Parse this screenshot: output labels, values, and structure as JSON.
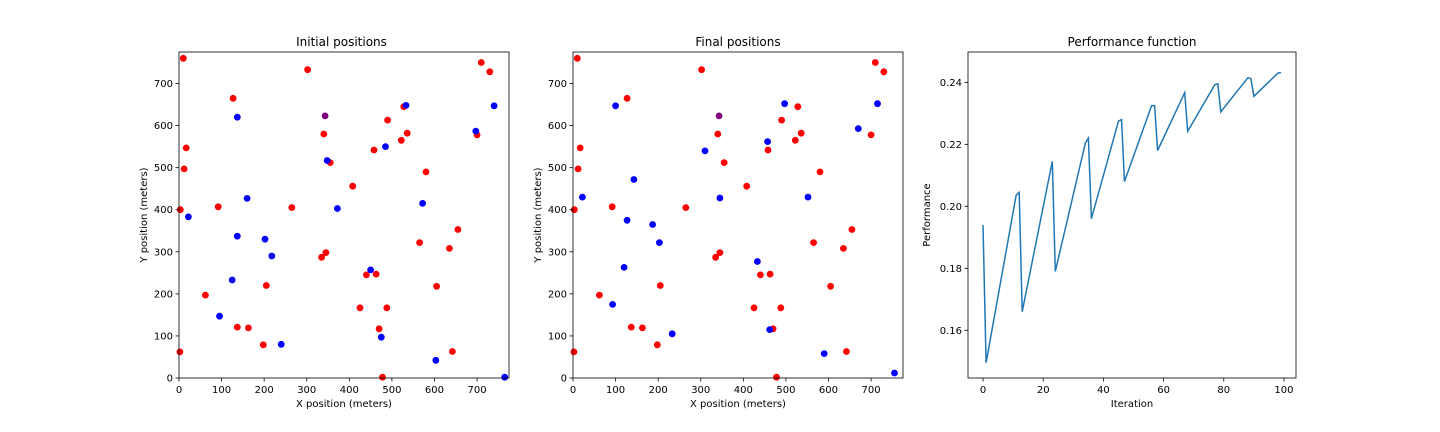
{
  "chart_data": [
    {
      "type": "scatter",
      "title": "Initial positions",
      "xlabel": "X position (meters)",
      "ylabel": "Y position (meters)",
      "xlim": [
        0,
        775
      ],
      "ylim": [
        0,
        775
      ],
      "xticks": [
        0,
        100,
        200,
        300,
        400,
        500,
        600,
        700
      ],
      "yticks": [
        0,
        100,
        200,
        300,
        400,
        500,
        600,
        700
      ],
      "grid": false,
      "series": [
        {
          "color": "#ff0000",
          "points": [
            [
              10,
              760
            ],
            [
              127,
              665
            ],
            [
              302,
              733
            ],
            [
              710,
              750
            ],
            [
              730,
              728
            ],
            [
              17,
              547
            ],
            [
              12,
              497
            ],
            [
              3,
              400
            ],
            [
              92,
              407
            ],
            [
              340,
              580
            ],
            [
              490,
              613
            ],
            [
              522,
              565
            ],
            [
              528,
              645
            ],
            [
              536,
              582
            ],
            [
              458,
              542
            ],
            [
              355,
              512
            ],
            [
              408,
              456
            ],
            [
              580,
              490
            ],
            [
              265,
              405
            ],
            [
              655,
              353
            ],
            [
              565,
              322
            ],
            [
              635,
              308
            ],
            [
              345,
              298
            ],
            [
              335,
              287
            ],
            [
              440,
              245
            ],
            [
              463,
              247
            ],
            [
              205,
              220
            ],
            [
              605,
              218
            ],
            [
              62,
              197
            ],
            [
              425,
              167
            ],
            [
              488,
              167
            ],
            [
              137,
              121
            ],
            [
              163,
              119
            ],
            [
              470,
              117
            ],
            [
              198,
              79
            ],
            [
              642,
              63
            ],
            [
              2,
              62
            ],
            [
              478,
              2
            ],
            [
              700,
              578
            ]
          ]
        },
        {
          "color": "#0000ff",
          "points": [
            [
              137,
              620
            ],
            [
              740,
              647
            ],
            [
              533,
              648
            ],
            [
              697,
              587
            ],
            [
              485,
              550
            ],
            [
              348,
              517
            ],
            [
              22,
              383
            ],
            [
              160,
              427
            ],
            [
              372,
              403
            ],
            [
              572,
              415
            ],
            [
              137,
              337
            ],
            [
              202,
              330
            ],
            [
              218,
              290
            ],
            [
              450,
              257
            ],
            [
              125,
              233
            ],
            [
              95,
              147
            ],
            [
              240,
              80
            ],
            [
              475,
              97
            ],
            [
              603,
              42
            ],
            [
              765,
              2
            ]
          ]
        },
        {
          "color": "#800080",
          "points": [
            [
              343,
              623
            ]
          ]
        }
      ]
    },
    {
      "type": "scatter",
      "title": "Final positions",
      "xlabel": "X position (meters)",
      "ylabel": "Y position (meters)",
      "xlim": [
        0,
        775
      ],
      "ylim": [
        0,
        775
      ],
      "xticks": [
        0,
        100,
        200,
        300,
        400,
        500,
        600,
        700
      ],
      "yticks": [
        0,
        100,
        200,
        300,
        400,
        500,
        600,
        700
      ],
      "grid": false,
      "series": [
        {
          "color": "#ff0000",
          "points": [
            [
              10,
              760
            ],
            [
              127,
              665
            ],
            [
              302,
              733
            ],
            [
              710,
              750
            ],
            [
              730,
              728
            ],
            [
              17,
              547
            ],
            [
              12,
              497
            ],
            [
              3,
              400
            ],
            [
              92,
              407
            ],
            [
              340,
              580
            ],
            [
              490,
              613
            ],
            [
              522,
              565
            ],
            [
              528,
              645
            ],
            [
              536,
              582
            ],
            [
              458,
              542
            ],
            [
              355,
              512
            ],
            [
              408,
              456
            ],
            [
              580,
              490
            ],
            [
              265,
              405
            ],
            [
              655,
              353
            ],
            [
              565,
              322
            ],
            [
              635,
              308
            ],
            [
              345,
              298
            ],
            [
              335,
              287
            ],
            [
              440,
              245
            ],
            [
              463,
              247
            ],
            [
              205,
              220
            ],
            [
              605,
              218
            ],
            [
              62,
              197
            ],
            [
              425,
              167
            ],
            [
              488,
              167
            ],
            [
              137,
              121
            ],
            [
              163,
              119
            ],
            [
              470,
              117
            ],
            [
              198,
              79
            ],
            [
              642,
              63
            ],
            [
              2,
              62
            ],
            [
              478,
              2
            ],
            [
              700,
              578
            ]
          ]
        },
        {
          "color": "#0000ff",
          "points": [
            [
              100,
              647
            ],
            [
              497,
              652
            ],
            [
              715,
              652
            ],
            [
              670,
              593
            ],
            [
              310,
              540
            ],
            [
              457,
              562
            ],
            [
              143,
              472
            ],
            [
              22,
              430
            ],
            [
              345,
              428
            ],
            [
              552,
              430
            ],
            [
              127,
              375
            ],
            [
              187,
              365
            ],
            [
              203,
              322
            ],
            [
              433,
              277
            ],
            [
              120,
              263
            ],
            [
              93,
              175
            ],
            [
              233,
              105
            ],
            [
              462,
              115
            ],
            [
              590,
              58
            ],
            [
              755,
              12
            ]
          ]
        },
        {
          "color": "#800080",
          "points": [
            [
              343,
              623
            ]
          ]
        }
      ]
    },
    {
      "type": "line",
      "title": "Performance function",
      "xlabel": "Iteration",
      "ylabel": "Performance",
      "xlim": [
        -5,
        104
      ],
      "ylim": [
        0.1446,
        0.2498
      ],
      "xticks": [
        0,
        20,
        40,
        60,
        80,
        100
      ],
      "yticks": [
        0.16,
        0.18,
        0.2,
        0.22,
        0.24
      ],
      "grid": false,
      "series": [
        {
          "color": "#1f77b4",
          "points": [
            [
              0,
              0.194
            ],
            [
              1,
              0.1495
            ],
            [
              11,
              0.2035
            ],
            [
              12,
              0.2045
            ],
            [
              13,
              0.166
            ],
            [
              23,
              0.2145
            ],
            [
              24,
              0.179
            ],
            [
              34,
              0.2205
            ],
            [
              35,
              0.222
            ],
            [
              36,
              0.196
            ],
            [
              45,
              0.2275
            ],
            [
              46,
              0.228
            ],
            [
              47,
              0.208
            ],
            [
              56,
              0.2325
            ],
            [
              57,
              0.2325
            ],
            [
              58,
              0.218
            ],
            [
              67,
              0.2367
            ],
            [
              68,
              0.2242
            ],
            [
              77,
              0.2392
            ],
            [
              78,
              0.2395
            ],
            [
              79,
              0.2305
            ],
            [
              88,
              0.2415
            ],
            [
              89,
              0.2412
            ],
            [
              90,
              0.2355
            ],
            [
              98,
              0.243
            ],
            [
              99,
              0.2432
            ]
          ]
        }
      ]
    }
  ]
}
